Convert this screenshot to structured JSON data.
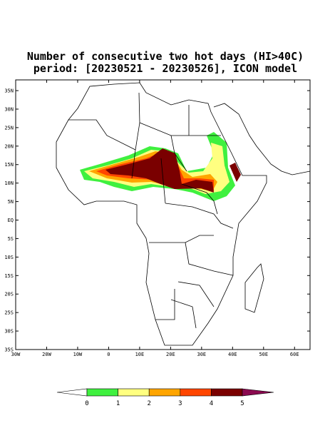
{
  "map": {
    "title": "Number of consecutive two hot days (HI>40C)",
    "subtitle": "period: [20230521 - 20230526], ICON model",
    "lonlim": [
      -30,
      65
    ],
    "latlim": [
      -35,
      37.9
    ],
    "lon_ticks": [
      {
        "value": -30,
        "label": "30W"
      },
      {
        "value": -20,
        "label": "20W"
      },
      {
        "value": -10,
        "label": "10W"
      },
      0,
      {
        "value": 10,
        "label": "10E"
      },
      {
        "value": 20,
        "label": "20E"
      },
      {
        "value": 30,
        "label": "30E"
      },
      {
        "value": 40,
        "label": "40E"
      },
      {
        "value": 50,
        "label": "50E"
      },
      {
        "value": 60,
        "label": "60E"
      }
    ],
    "lat_ticks": [
      {
        "value": 35,
        "label": "35N"
      },
      {
        "value": 30,
        "label": "30N"
      },
      {
        "value": 25,
        "label": "25N"
      },
      {
        "value": 20,
        "label": "20N"
      },
      {
        "value": 15,
        "label": "15N"
      },
      {
        "value": 10,
        "label": "10N"
      },
      {
        "value": 5,
        "label": "5N"
      },
      {
        "value": 0,
        "label": "EQ"
      },
      {
        "value": -5,
        "label": "5S"
      },
      {
        "value": -10,
        "label": "10S"
      },
      {
        "value": -15,
        "label": "15S"
      },
      {
        "value": -20,
        "label": "20S"
      },
      {
        "value": -25,
        "label": "25S"
      },
      {
        "value": -30,
        "label": "30S"
      },
      {
        "value": -35,
        "label": "35S"
      }
    ],
    "colorbar": {
      "levels": [
        0,
        1,
        2,
        3,
        4,
        5
      ],
      "colors": [
        "#ffffff",
        "#3ff03f",
        "#ffff80",
        "#ffa500",
        "#ff4500",
        "#7a0000",
        "#8b0a50"
      ]
    }
  }
}
